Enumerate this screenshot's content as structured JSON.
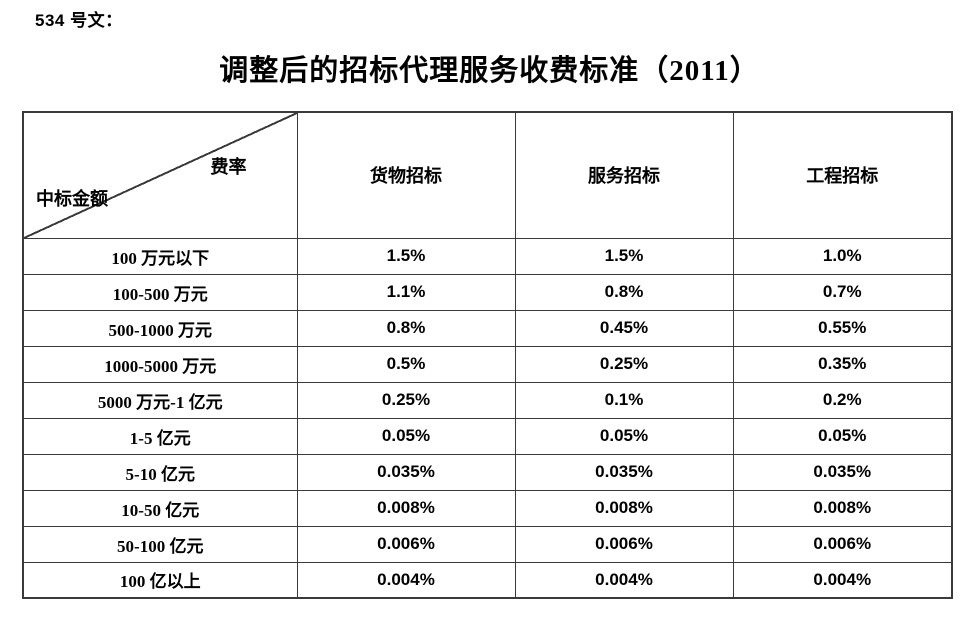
{
  "doc": {
    "label": "534 号文：",
    "title": "调整后的招标代理服务收费标准（2011）"
  },
  "table": {
    "corner": {
      "top_right": "费率",
      "bottom_left": "中标金额"
    },
    "columns": [
      "货物招标",
      "服务招标",
      "工程招标"
    ],
    "rows": [
      {
        "amount": "100 万元以下",
        "values": [
          "1.5%",
          "1.5%",
          "1.0%"
        ]
      },
      {
        "amount": "100-500 万元",
        "values": [
          "1.1%",
          "0.8%",
          "0.7%"
        ]
      },
      {
        "amount": "500-1000 万元",
        "values": [
          "0.8%",
          "0.45%",
          "0.55%"
        ]
      },
      {
        "amount": "1000-5000 万元",
        "values": [
          "0.5%",
          "0.25%",
          "0.35%"
        ]
      },
      {
        "amount": "5000 万元-1 亿元",
        "values": [
          "0.25%",
          "0.1%",
          "0.2%"
        ]
      },
      {
        "amount": "1-5 亿元",
        "values": [
          "0.05%",
          "0.05%",
          "0.05%"
        ]
      },
      {
        "amount": "5-10 亿元",
        "values": [
          "0.035%",
          "0.035%",
          "0.035%"
        ]
      },
      {
        "amount": "10-50 亿元",
        "values": [
          "0.008%",
          "0.008%",
          "0.008%"
        ]
      },
      {
        "amount": "50-100 亿元",
        "values": [
          "0.006%",
          "0.006%",
          "0.006%"
        ]
      },
      {
        "amount": "100 亿以上",
        "values": [
          "0.004%",
          "0.004%",
          "0.004%"
        ]
      }
    ]
  },
  "colors": {
    "background": "#ffffff",
    "text": "#000000",
    "border": "#3a3a3a"
  }
}
